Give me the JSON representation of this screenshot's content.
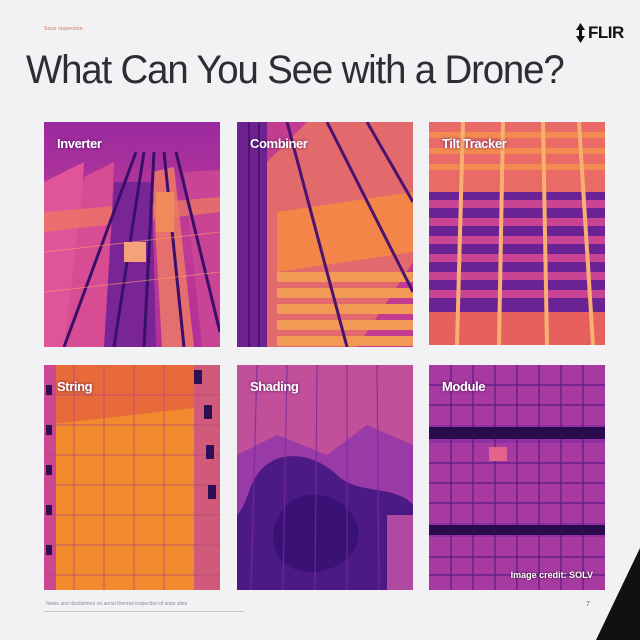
{
  "breadcrumb": "Solar inspection",
  "logo": {
    "text": "FLIR",
    "icon": "flir-logo-icon"
  },
  "title": "What Can You See with a Drone?",
  "panels": [
    {
      "label": "Inverter"
    },
    {
      "label": "Combiner"
    },
    {
      "label": "Tilt Tracker"
    },
    {
      "label": "String"
    },
    {
      "label": "Shading"
    },
    {
      "label": "Module"
    }
  ],
  "image_credit": "Image credit: SOLV",
  "footnote": "Notes and disclaimers on aerial thermal inspection of solar sites",
  "page_number": "7",
  "colors": {
    "background": "#f2f1f3",
    "thermal_hot": "#f58a3a",
    "thermal_mid": "#c9398f",
    "thermal_cold": "#5a1a8c",
    "accent_triangle": "#111111"
  }
}
